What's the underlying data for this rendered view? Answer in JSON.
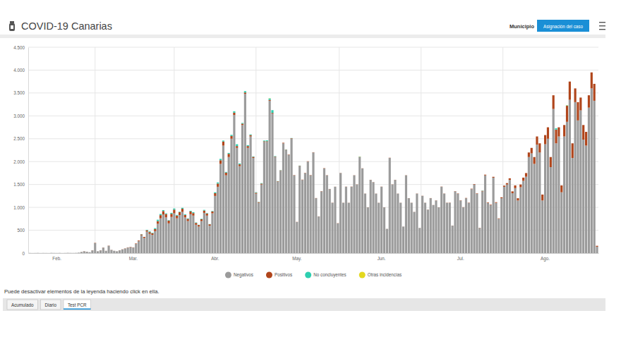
{
  "page": {
    "title": "COVID-19 Canarias",
    "header_label": "Municipio",
    "header_button": "Asignación del caso",
    "note": "Puede desactivar elementos de la leyenda haciendo click en ella.",
    "tabs": [
      "Acumulado",
      "Diario",
      "Test PCR"
    ]
  },
  "chart_data": {
    "type": "bar",
    "stacked": true,
    "grid": true,
    "legend": "bottom",
    "categories": [
      null,
      null,
      null,
      null,
      null,
      null,
      null,
      null,
      null,
      null,
      "Feb.",
      null,
      null,
      null,
      null,
      null,
      null,
      null,
      null,
      null,
      null,
      null,
      null,
      null,
      null,
      null,
      null,
      null,
      null,
      null,
      null,
      null,
      null,
      null,
      null,
      null,
      null,
      null,
      "Mar.",
      null,
      null,
      null,
      null,
      null,
      null,
      null,
      null,
      null,
      null,
      null,
      null,
      null,
      null,
      null,
      null,
      null,
      null,
      null,
      null,
      null,
      null,
      null,
      null,
      null,
      null,
      null,
      null,
      null,
      "Abr.",
      null,
      null,
      null,
      null,
      null,
      null,
      null,
      null,
      null,
      null,
      null,
      null,
      null,
      null,
      null,
      null,
      null,
      null,
      null,
      null,
      null,
      null,
      null,
      null,
      null,
      null,
      null,
      null,
      null,
      "May.",
      null,
      null,
      null,
      null,
      null,
      null,
      null,
      null,
      null,
      null,
      null,
      null,
      null,
      null,
      null,
      null,
      null,
      null,
      null,
      null,
      null,
      null,
      null,
      null,
      null,
      null,
      null,
      null,
      null,
      null,
      "Jun.",
      null,
      null,
      null,
      null,
      null,
      null,
      null,
      null,
      null,
      null,
      null,
      null,
      null,
      null,
      null,
      null,
      null,
      null,
      null,
      null,
      null,
      null,
      null,
      null,
      null,
      null,
      null,
      null,
      "Jul.",
      null,
      null,
      null,
      null,
      null,
      null,
      null,
      null,
      null,
      null,
      null,
      null,
      null,
      null,
      null,
      null,
      null,
      null,
      null,
      null,
      null,
      null,
      null,
      null,
      null,
      null,
      null,
      null,
      null,
      null,
      "Ago.",
      null,
      null,
      null,
      null,
      null,
      null,
      null,
      null,
      null,
      null,
      null,
      null,
      null,
      null,
      null,
      null,
      null,
      null,
      null
    ],
    "series": [
      {
        "name": "Negativos",
        "color": "#9b9b9b",
        "values": [
          2,
          0,
          1,
          3,
          0,
          2,
          1,
          0,
          4,
          2,
          1,
          3,
          0,
          2,
          5,
          3,
          2,
          4,
          10,
          25,
          40,
          30,
          20,
          60,
          220,
          40,
          60,
          120,
          50,
          160,
          70,
          50,
          40,
          60,
          80,
          100,
          120,
          130,
          120,
          200,
          260,
          390,
          330,
          470,
          420,
          400,
          480,
          640,
          760,
          840,
          780,
          650,
          790,
          870,
          760,
          830,
          900,
          780,
          700,
          850,
          820,
          620,
          580,
          700,
          880,
          820,
          600,
          870,
          1250,
          1450,
          1950,
          2350,
          1700,
          2100,
          2500,
          3020,
          2300,
          1900,
          2800,
          3480,
          2300,
          2550,
          2080,
          1300,
          1100,
          1500,
          2430,
          2430,
          3330,
          3050,
          2100,
          1560,
          1800,
          2400,
          2250,
          2150,
          2500,
          1700,
          680,
          1900,
          1600,
          1750,
          2000,
          1700,
          2200,
          1200,
          800,
          1350,
          1850,
          1700,
          1400,
          1100,
          1450,
          650,
          1750,
          1100,
          1450,
          1100,
          1450,
          1700,
          1500,
          2100,
          1850,
          1300,
          1000,
          1600,
          1550,
          1300,
          1100,
          1450,
          1000,
          530,
          2080,
          1500,
          1600,
          1300,
          1100,
          580,
          1700,
          1200,
          1100,
          900,
          1300,
          550,
          1250,
          1100,
          950,
          1200,
          1050,
          1150,
          1000,
          1450,
          1300,
          1100,
          1100,
          600,
          1350,
          1300,
          1150,
          1000,
          1200,
          1100,
          1400,
          1500,
          1300,
          550,
          1350,
          1700,
          1100,
          1050,
          1650,
          1100,
          750,
          1200,
          1450,
          1500,
          1600,
          1310,
          1420,
          1150,
          1440,
          1580,
          1670,
          2100,
          2180,
          1950,
          2370,
          2200,
          1150,
          2380,
          2500,
          1880,
          3150,
          2400,
          2550,
          1330,
          2550,
          2870,
          3350,
          2080,
          3300,
          2900,
          3120,
          2480,
          2350,
          3180,
          3600,
          3330,
          140
        ]
      },
      {
        "name": "Positivos",
        "color": "#b0451b",
        "values": [
          0,
          0,
          0,
          0,
          0,
          0,
          0,
          0,
          0,
          0,
          0,
          0,
          0,
          0,
          0,
          0,
          0,
          0,
          0,
          1,
          2,
          1,
          0,
          2,
          5,
          1,
          2,
          3,
          1,
          4,
          2,
          1,
          1,
          2,
          3,
          4,
          5,
          6,
          5,
          10,
          15,
          20,
          25,
          30,
          40,
          35,
          45,
          60,
          70,
          80,
          75,
          60,
          70,
          80,
          60,
          65,
          70,
          55,
          50,
          60,
          55,
          40,
          35,
          40,
          50,
          45,
          30,
          40,
          60,
          70,
          80,
          90,
          60,
          70,
          60,
          50,
          40,
          40,
          30,
          30,
          40,
          30,
          25,
          20,
          15,
          20,
          15,
          15,
          20,
          15,
          10,
          10,
          8,
          12,
          9,
          7,
          10,
          6,
          3,
          8,
          6,
          5,
          7,
          6,
          5,
          4,
          3,
          5,
          6,
          4,
          3,
          3,
          2,
          4,
          3,
          2,
          3,
          2,
          4,
          3,
          3,
          4,
          3,
          2,
          2,
          3,
          3,
          2,
          2,
          3,
          2,
          1,
          4,
          3,
          3,
          2,
          2,
          1,
          3,
          2,
          2,
          2,
          3,
          1,
          3,
          2,
          2,
          3,
          2,
          3,
          2,
          4,
          3,
          3,
          4,
          2,
          5,
          6,
          5,
          4,
          6,
          5,
          8,
          10,
          8,
          4,
          12,
          15,
          10,
          10,
          18,
          14,
          10,
          20,
          25,
          30,
          35,
          40,
          60,
          50,
          60,
          70,
          80,
          100,
          120,
          150,
          180,
          200,
          130,
          200,
          250,
          220,
          300,
          300,
          200,
          150,
          250,
          350,
          400,
          320,
          300,
          400,
          280,
          320,
          300,
          270,
          350,
          370,
          20
        ]
      },
      {
        "name": "No concluyentes",
        "color": "#2ecfb0",
        "values": [
          0,
          0,
          0,
          0,
          0,
          0,
          0,
          0,
          0,
          0,
          0,
          0,
          0,
          0,
          0,
          0,
          0,
          0,
          0,
          0,
          0,
          0,
          0,
          0,
          0,
          0,
          0,
          0,
          0,
          0,
          0,
          0,
          0,
          0,
          0,
          0,
          0,
          0,
          0,
          0,
          0,
          5,
          0,
          10,
          15,
          10,
          20,
          30,
          25,
          20,
          15,
          10,
          20,
          25,
          15,
          10,
          20,
          15,
          10,
          15,
          20,
          10,
          5,
          10,
          15,
          10,
          5,
          10,
          20,
          25,
          30,
          20,
          15,
          20,
          25,
          30,
          40,
          20,
          15,
          30,
          20,
          15,
          10,
          10,
          5,
          10,
          15,
          20,
          30,
          60,
          10,
          5,
          5,
          0,
          5,
          0,
          5,
          0,
          0,
          5,
          0,
          0,
          0,
          0,
          0,
          0,
          0,
          0,
          0,
          0,
          0,
          0,
          0,
          0,
          0,
          0,
          0,
          0,
          0,
          0,
          0,
          5,
          0,
          0,
          0,
          0,
          0,
          0,
          0,
          0,
          0,
          0,
          0,
          0,
          0,
          0,
          0,
          0,
          0,
          0,
          0,
          0,
          0,
          0,
          0,
          0,
          0,
          0,
          0,
          0,
          0,
          0,
          0,
          0,
          0,
          0,
          0,
          0,
          0,
          0,
          0,
          0,
          0,
          0,
          0,
          0,
          5,
          0,
          0,
          0,
          0,
          0,
          0,
          0,
          0,
          0,
          0,
          0,
          0,
          0,
          0,
          0,
          0,
          0,
          0,
          0,
          0,
          0,
          0,
          0,
          0,
          0,
          0,
          30,
          0,
          0,
          0,
          10,
          0,
          0,
          0,
          0,
          0,
          0,
          0,
          0,
          0,
          0,
          0
        ]
      },
      {
        "name": "Otras incidencias",
        "color": "#e3d81e",
        "values": [
          0,
          0,
          0,
          0,
          0,
          0,
          0,
          0,
          0,
          0,
          0,
          0,
          0,
          0,
          0,
          0,
          0,
          0,
          0,
          0,
          0,
          0,
          0,
          0,
          0,
          0,
          0,
          0,
          0,
          0,
          0,
          0,
          0,
          0,
          0,
          0,
          0,
          0,
          0,
          0,
          0,
          0,
          0,
          0,
          0,
          0,
          0,
          0,
          0,
          0,
          0,
          0,
          0,
          0,
          0,
          0,
          0,
          0,
          0,
          0,
          0,
          0,
          0,
          0,
          0,
          0,
          0,
          0,
          0,
          0,
          0,
          0,
          0,
          0,
          0,
          0,
          0,
          0,
          0,
          0,
          0,
          0,
          0,
          0,
          0,
          0,
          0,
          0,
          5,
          0,
          0,
          0,
          0,
          0,
          0,
          0,
          0,
          0,
          0,
          0,
          0,
          0,
          0,
          0,
          0,
          0,
          0,
          0,
          0,
          0,
          0,
          0,
          0,
          0,
          0,
          0,
          0,
          0,
          0,
          0,
          0,
          3,
          0,
          0,
          0,
          0,
          0,
          0,
          0,
          0,
          0,
          0,
          0,
          0,
          0,
          0,
          0,
          0,
          0,
          0,
          0,
          0,
          0,
          0,
          0,
          0,
          0,
          0,
          0,
          0,
          0,
          0,
          0,
          0,
          0,
          0,
          0,
          0,
          0,
          0,
          0,
          0,
          0,
          0,
          0,
          0,
          0,
          0,
          0,
          0,
          0,
          0,
          0,
          0,
          0,
          0,
          0,
          0,
          0,
          0,
          0,
          0,
          0,
          0,
          0,
          0,
          0,
          0,
          0,
          0,
          0,
          0,
          0,
          0,
          0,
          0,
          0,
          5,
          0,
          0,
          0,
          0,
          0,
          0,
          0,
          0,
          0,
          0,
          0
        ]
      }
    ],
    "ylim": [
      0,
      4500
    ],
    "yticks": [
      0,
      500,
      {
        "value": 1000,
        "label": "1.000"
      },
      {
        "value": 1500,
        "label": "1.500"
      },
      {
        "value": 2000,
        "label": "2.000"
      },
      {
        "value": 2500,
        "label": "2.500"
      },
      {
        "value": 3000,
        "label": "3.000"
      },
      {
        "value": 3500,
        "label": "3.500"
      },
      {
        "value": 4000,
        "label": "4.000"
      },
      {
        "value": 4500,
        "label": "4.500"
      }
    ]
  }
}
